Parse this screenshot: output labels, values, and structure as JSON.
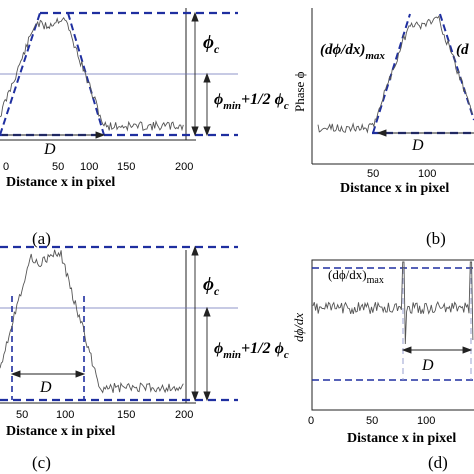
{
  "figure": {
    "panels": [
      {
        "id": "a",
        "caption": "(a)",
        "xlabel": "Distance x in pixel",
        "ticks": [
          "0",
          "50",
          "100",
          "150",
          "200"
        ],
        "annotations": {
          "phi_c": "ϕ",
          "phi_c_sub": "c",
          "phi_min": "ϕ",
          "phi_min_sub": "min",
          "half_phi_c": "+1/2 ϕ",
          "half_phi_c_sub": "c",
          "D": "D"
        }
      },
      {
        "id": "b",
        "caption": "(b)",
        "xlabel": "Distance x in pixel",
        "ylabel": "Phase ϕ",
        "ticks": [
          "50",
          "100"
        ],
        "annotations": {
          "dphidx": "(dϕ/dx)",
          "dphidx_sub": "max",
          "dphidx_clip": "(d",
          "D": "D"
        }
      },
      {
        "id": "c",
        "caption": "(c)",
        "xlabel": "Distance x in pixel",
        "ticks": [
          "50",
          "100",
          "150",
          "200"
        ],
        "annotations": {
          "phi_c": "ϕ",
          "phi_c_sub": "c",
          "phi_min": "ϕ",
          "phi_min_sub": "min",
          "half_phi_c": "+1/2 ϕ",
          "half_phi_c_sub": "c",
          "D": "D"
        }
      },
      {
        "id": "d",
        "caption": "(d)",
        "xlabel": "Distance x in pixel",
        "ylabel": "dϕ/dx",
        "ticks": [
          "0",
          "50",
          "100"
        ],
        "annotations": {
          "dphidx": "(dϕ/dx)",
          "dphidx_sub": "max",
          "D": "D"
        }
      }
    ],
    "colors": {
      "dash": "#1f2fa0",
      "signal": "#555555",
      "axis": "#222222",
      "thin": "#6a72b8"
    }
  }
}
